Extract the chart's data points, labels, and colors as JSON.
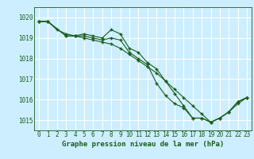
{
  "title": "Graphe pression niveau de la mer (hPa)",
  "bg_color": "#cceeff",
  "grid_color": "#ffffff",
  "line_color": "#1a5c1a",
  "marker_color": "#1a5c1a",
  "xlim": [
    -0.5,
    23.5
  ],
  "ylim": [
    1014.5,
    1020.5
  ],
  "yticks": [
    1015,
    1016,
    1017,
    1018,
    1019,
    1020
  ],
  "xticks": [
    0,
    1,
    2,
    3,
    4,
    5,
    6,
    7,
    8,
    9,
    10,
    11,
    12,
    13,
    14,
    15,
    16,
    17,
    18,
    19,
    20,
    21,
    22,
    23
  ],
  "line1": {
    "x": [
      0,
      1,
      3,
      4,
      5,
      6,
      7,
      8,
      9,
      10,
      11,
      12,
      13,
      14,
      15,
      16,
      17,
      18,
      19,
      20,
      21,
      22,
      23
    ],
    "y": [
      1019.8,
      1019.8,
      1019.1,
      1019.1,
      1019.2,
      1019.1,
      1019.0,
      1019.4,
      1019.2,
      1018.5,
      1018.3,
      1017.8,
      1017.5,
      1016.9,
      1016.3,
      1015.7,
      1015.1,
      1015.1,
      1014.9,
      1015.1,
      1015.4,
      1015.9,
      1016.1
    ]
  },
  "line2": {
    "x": [
      0,
      1,
      3,
      4,
      5,
      6,
      7,
      8,
      9,
      10,
      11,
      12,
      13,
      14,
      15,
      16,
      17,
      18,
      19,
      20,
      21,
      22,
      23
    ],
    "y": [
      1019.8,
      1019.8,
      1019.1,
      1019.1,
      1019.1,
      1019.0,
      1018.9,
      1019.0,
      1018.9,
      1018.3,
      1018.0,
      1017.7,
      1016.8,
      1016.2,
      1015.8,
      1015.6,
      1015.1,
      1015.1,
      1014.9,
      1015.1,
      1015.4,
      1015.9,
      1016.1
    ]
  },
  "line3": {
    "x": [
      0,
      1,
      2,
      3,
      4,
      5,
      6,
      7,
      8,
      9,
      10,
      11,
      12,
      13,
      14,
      15,
      16,
      17,
      18,
      19,
      20,
      21,
      22,
      23
    ],
    "y": [
      1019.8,
      1019.8,
      1019.4,
      1019.2,
      1019.1,
      1019.0,
      1018.9,
      1018.8,
      1018.7,
      1018.5,
      1018.2,
      1017.9,
      1017.6,
      1017.3,
      1016.9,
      1016.5,
      1016.1,
      1015.7,
      1015.3,
      1014.9,
      1015.1,
      1015.4,
      1015.8,
      1016.1
    ]
  },
  "title_fontsize": 6.5,
  "tick_fontsize": 5.5
}
